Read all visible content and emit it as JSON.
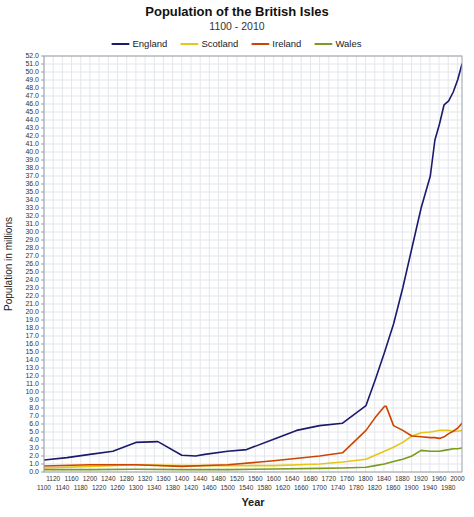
{
  "chart_data": {
    "type": "line",
    "title": "Population of the British Isles",
    "subtitle": "1100 - 2010",
    "xlabel": "Year",
    "ylabel": "Population in millions",
    "xlim": [
      1100,
      2010
    ],
    "ylim": [
      0,
      52
    ],
    "xticks": [
      1100,
      1120,
      1140,
      1160,
      1180,
      1200,
      1220,
      1240,
      1260,
      1280,
      1300,
      1320,
      1340,
      1360,
      1380,
      1400,
      1420,
      1440,
      1460,
      1480,
      1500,
      1520,
      1540,
      1560,
      1580,
      1600,
      1620,
      1640,
      1660,
      1680,
      1700,
      1720,
      1740,
      1760,
      1780,
      1800,
      1820,
      1840,
      1860,
      1880,
      1900,
      1920,
      1940,
      1960,
      1980,
      2000
    ],
    "yticks": [
      {
        "value": 0,
        "label": "0.0"
      },
      {
        "value": 1,
        "label": "1.0"
      },
      {
        "value": 2,
        "label": "2.0"
      },
      {
        "value": 3,
        "label": "3.0"
      },
      {
        "value": 4,
        "label": "4.0"
      },
      {
        "value": 5,
        "label": "5.0"
      },
      {
        "value": 6,
        "label": "6.0"
      },
      {
        "value": 7,
        "label": "7.0"
      },
      {
        "value": 8,
        "label": "8.0"
      },
      {
        "value": 9,
        "label": "9.0"
      },
      {
        "value": 10,
        "label": "10.0"
      },
      {
        "value": 11,
        "label": "11.0"
      },
      {
        "value": 12,
        "label": "12.0"
      },
      {
        "value": 13,
        "label": "13.0"
      },
      {
        "value": 14,
        "label": "14.0"
      },
      {
        "value": 15,
        "label": "15.0"
      },
      {
        "value": 16,
        "label": "16.0"
      },
      {
        "value": 17,
        "label": "17.0"
      },
      {
        "value": 18,
        "label": "18.0"
      },
      {
        "value": 19,
        "label": "19.0"
      },
      {
        "value": 20,
        "label": "20.0"
      },
      {
        "value": 21,
        "label": "21.0"
      },
      {
        "value": 22,
        "label": "22.0"
      },
      {
        "value": 23,
        "label": "23.0"
      },
      {
        "value": 24,
        "label": "24.0"
      },
      {
        "value": 25,
        "label": "25.0"
      },
      {
        "value": 26,
        "label": "26.0"
      },
      {
        "value": 27,
        "label": "27.0"
      },
      {
        "value": 28,
        "label": "28.0"
      },
      {
        "value": 29,
        "label": "29.0"
      },
      {
        "value": 30,
        "label": "30.0"
      },
      {
        "value": 31,
        "label": "31.0"
      },
      {
        "value": 32,
        "label": "32.0"
      },
      {
        "value": 33,
        "label": "33.0"
      },
      {
        "value": 34,
        "label": "34.0"
      },
      {
        "value": 35,
        "label": "35.0"
      },
      {
        "value": 36,
        "label": "36.0"
      },
      {
        "value": 37,
        "label": "37.0"
      },
      {
        "value": 38,
        "label": "38.0"
      },
      {
        "value": 39,
        "label": "39.0"
      },
      {
        "value": 40,
        "label": "40.0"
      },
      {
        "value": 41,
        "label": "41.0"
      },
      {
        "value": 42,
        "label": "42.0"
      },
      {
        "value": 43,
        "label": "43.0"
      },
      {
        "value": 44,
        "label": "44.0"
      },
      {
        "value": 45,
        "label": "45.0"
      },
      {
        "value": 46,
        "label": "46.0"
      },
      {
        "value": 47,
        "label": "47.0"
      },
      {
        "value": 48,
        "label": "48.0"
      },
      {
        "value": 49,
        "label": "49.0"
      },
      {
        "value": 50,
        "label": "50.0"
      },
      {
        "value": 51,
        "label": "51.0"
      },
      {
        "value": 52,
        "label": "52.0"
      }
    ],
    "grid": true,
    "legend": "top",
    "series": [
      {
        "name": "England",
        "color": "#1a1a6e",
        "x": [
          1100,
          1150,
          1200,
          1250,
          1300,
          1348,
          1400,
          1430,
          1450,
          1500,
          1541,
          1600,
          1650,
          1700,
          1750,
          1801,
          1821,
          1841,
          1861,
          1881,
          1901,
          1921,
          1941,
          1951,
          1961,
          1971,
          1981,
          1991,
          2001,
          2010
        ],
        "values": [
          1.5,
          1.8,
          2.2,
          2.6,
          3.7,
          3.8,
          2.1,
          2.0,
          2.2,
          2.6,
          2.8,
          4.1,
          5.2,
          5.8,
          6.1,
          8.3,
          11.5,
          14.9,
          18.5,
          23.0,
          28.0,
          33.0,
          37.0,
          41.5,
          43.5,
          45.9,
          46.4,
          47.5,
          49.1,
          51.0
        ]
      },
      {
        "name": "Scotland",
        "color": "#e6c619",
        "x": [
          1100,
          1200,
          1300,
          1400,
          1500,
          1600,
          1700,
          1750,
          1801,
          1821,
          1841,
          1861,
          1881,
          1901,
          1921,
          1941,
          1951,
          1961,
          1971,
          1981,
          1991,
          2001,
          2010
        ],
        "values": [
          0.5,
          0.7,
          0.9,
          0.8,
          0.8,
          0.8,
          1.0,
          1.25,
          1.6,
          2.1,
          2.6,
          3.1,
          3.7,
          4.5,
          4.9,
          5.0,
          5.1,
          5.2,
          5.2,
          5.2,
          5.1,
          5.1,
          5.2
        ]
      },
      {
        "name": "Ireland",
        "color": "#cc4400",
        "x": [
          1100,
          1200,
          1300,
          1400,
          1500,
          1600,
          1700,
          1750,
          1801,
          1821,
          1841,
          1845,
          1861,
          1881,
          1901,
          1921,
          1941,
          1951,
          1961,
          1971,
          1981,
          1991,
          2001,
          2010
        ],
        "values": [
          0.75,
          0.9,
          0.9,
          0.7,
          0.9,
          1.4,
          2.0,
          2.4,
          5.2,
          6.8,
          8.2,
          8.2,
          5.8,
          5.2,
          4.5,
          4.4,
          4.3,
          4.3,
          4.2,
          4.4,
          4.8,
          5.1,
          5.5,
          6.1
        ]
      },
      {
        "name": "Wales",
        "color": "#7a9a20",
        "x": [
          1100,
          1200,
          1300,
          1400,
          1500,
          1600,
          1700,
          1750,
          1801,
          1821,
          1841,
          1861,
          1881,
          1901,
          1921,
          1941,
          1951,
          1961,
          1971,
          1981,
          1991,
          2001,
          2010
        ],
        "values": [
          0.3,
          0.3,
          0.35,
          0.3,
          0.3,
          0.38,
          0.45,
          0.5,
          0.6,
          0.8,
          1.0,
          1.3,
          1.6,
          2.0,
          2.7,
          2.6,
          2.6,
          2.6,
          2.7,
          2.8,
          2.9,
          2.9,
          3.0
        ]
      }
    ]
  }
}
